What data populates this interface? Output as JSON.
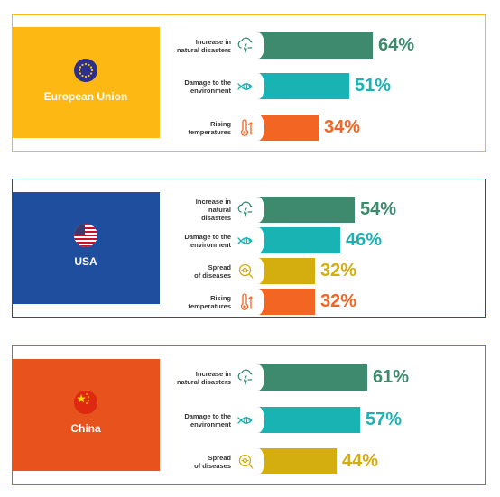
{
  "chart_data": [
    {
      "type": "bar",
      "region": "European Union",
      "flag_icon": "eu-flag-icon",
      "color": "#FDB813",
      "categories": [
        "Increase in natural disasters",
        "Damage to the environment",
        "Rising temperatures"
      ],
      "labels_lines": [
        [
          "Increase in",
          "natural disasters"
        ],
        [
          "Damage to the",
          "environment"
        ],
        [
          "Rising",
          "temperatures"
        ]
      ],
      "icons": [
        "cloud-lightning-icon",
        "dead-fish-icon",
        "thermometer-icon"
      ],
      "values": [
        64,
        51,
        34
      ],
      "value_labels": [
        "64%",
        "51%",
        "34%"
      ],
      "bar_colors": [
        "#3D8A6E",
        "#1AB3B3",
        "#F26522"
      ]
    },
    {
      "type": "bar",
      "region": "USA",
      "flag_icon": "usa-flag-icon",
      "color": "#1F4E9E",
      "categories": [
        "Increase in natural disasters",
        "Damage to the environment",
        "Spread of diseases",
        "Rising temperatures"
      ],
      "labels_lines": [
        [
          "Increase in",
          "natural",
          "disasters"
        ],
        [
          "Damage to the",
          "environment"
        ],
        [
          "Spread",
          "of diseases"
        ],
        [
          "Rising",
          "temperatures"
        ]
      ],
      "icons": [
        "cloud-lightning-icon",
        "dead-fish-icon",
        "virus-magnifier-icon",
        "thermometer-icon"
      ],
      "values": [
        54,
        46,
        32,
        32
      ],
      "value_labels": [
        "54%",
        "46%",
        "32%",
        "32%"
      ],
      "bar_colors": [
        "#3D8A6E",
        "#1AB3B3",
        "#D4AE0E",
        "#F26522"
      ]
    },
    {
      "type": "bar",
      "region": "China",
      "flag_icon": "china-flag-icon",
      "color": "#E8531D",
      "categories": [
        "Increase in natural disasters",
        "Damage to the environment",
        "Spread of diseases"
      ],
      "labels_lines": [
        [
          "Increase in",
          "natural disasters"
        ],
        [
          "Damage to the",
          "environment"
        ],
        [
          "Spread",
          "of diseases"
        ]
      ],
      "icons": [
        "cloud-lightning-icon",
        "dead-fish-icon",
        "virus-magnifier-icon"
      ],
      "values": [
        61,
        57,
        44
      ],
      "value_labels": [
        "61%",
        "57%",
        "44%"
      ],
      "bar_colors": [
        "#3D8A6E",
        "#1AB3B3",
        "#D4AE0E"
      ]
    }
  ]
}
